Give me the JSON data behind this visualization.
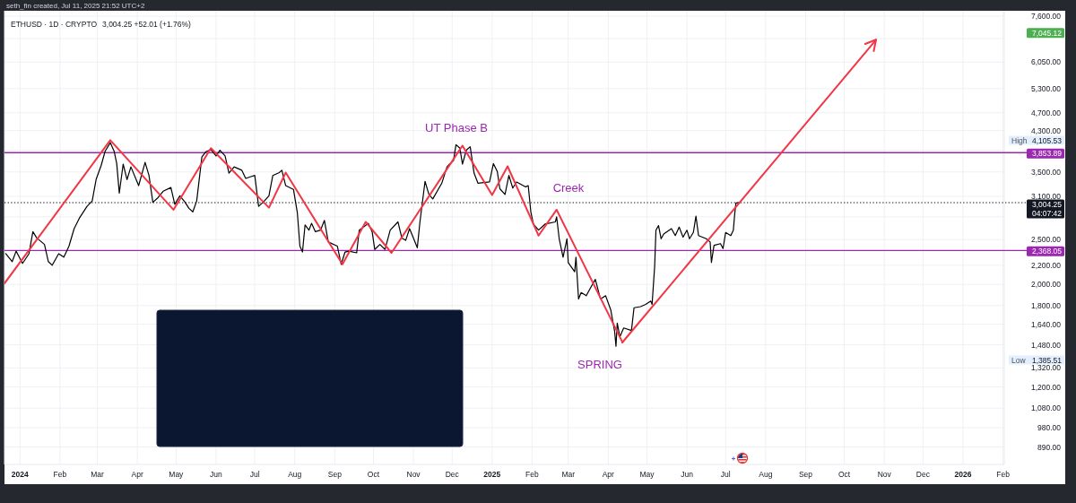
{
  "chart_data": {
    "type": "line",
    "title": "ETHUSD · 1D · CRYPTO",
    "subtitle": "3,004.25 +52.01 (+1.76%)",
    "annotations": [
      "seth_fin created, Jul 11, 2025 21:52 UTC+2",
      "UT Phase B",
      "Creek",
      "SPRING",
      "High 4,105.53",
      "Low 1,385.51",
      "7,045.12"
    ],
    "series": [
      {
        "color": "#000000",
        "x": [
          "2023-12-21",
          "2023-12-26",
          "2023-12-29",
          "2024-01-03",
          "2024-01-08",
          "2024-01-11",
          "2024-01-14",
          "2024-01-20",
          "2024-01-23",
          "2024-01-26",
          "2024-01-31",
          "2024-02-04",
          "2024-02-08",
          "2024-02-12",
          "2024-02-16",
          "2024-02-22",
          "2024-02-26",
          "2024-02-29",
          "2024-03-04",
          "2024-03-07",
          "2024-03-11",
          "2024-03-14",
          "2024-03-16",
          "2024-03-18",
          "2024-03-21",
          "2024-03-24",
          "2024-03-27",
          "2024-04-02",
          "2024-04-07",
          "2024-04-10",
          "2024-04-13",
          "2024-04-17",
          "2024-04-21",
          "2024-04-27",
          "2024-04-30",
          "2024-05-04",
          "2024-05-08",
          "2024-05-11",
          "2024-05-14",
          "2024-05-17",
          "2024-05-21",
          "2024-05-24",
          "2024-05-28",
          "2024-06-01",
          "2024-06-04",
          "2024-06-08",
          "2024-06-11",
          "2024-06-15",
          "2024-06-21",
          "2024-06-24",
          "2024-06-28",
          "2024-07-01",
          "2024-07-04",
          "2024-07-08",
          "2024-07-12",
          "2024-07-15",
          "2024-07-20",
          "2024-07-22",
          "2024-07-25",
          "2024-07-31",
          "2024-08-03",
          "2024-08-05",
          "2024-08-07",
          "2024-08-09",
          "2024-08-12",
          "2024-08-14",
          "2024-08-17",
          "2024-08-21",
          "2024-08-24",
          "2024-08-27",
          "2024-09-03",
          "2024-09-06",
          "2024-09-09",
          "2024-09-12",
          "2024-09-18",
          "2024-09-20",
          "2024-09-24",
          "2024-09-27",
          "2024-09-30",
          "2024-10-02",
          "2024-10-06",
          "2024-10-10",
          "2024-10-14",
          "2024-10-20",
          "2024-10-23",
          "2024-10-26",
          "2024-10-29",
          "2024-11-01",
          "2024-11-04",
          "2024-11-06",
          "2024-11-10",
          "2024-11-13",
          "2024-11-16",
          "2024-11-23",
          "2024-11-27",
          "2024-11-29",
          "2024-12-02",
          "2024-12-04",
          "2024-12-07",
          "2024-12-09",
          "2024-12-12",
          "2024-12-15",
          "2024-12-18",
          "2024-12-21",
          "2024-12-30",
          "2025-01-02",
          "2025-01-05",
          "2025-01-07",
          "2025-01-11",
          "2025-01-14",
          "2025-01-17",
          "2025-01-20",
          "2025-01-27",
          "2025-01-29",
          "2025-01-31",
          "2025-02-02",
          "2025-02-06",
          "2025-02-11",
          "2025-02-19",
          "2025-02-20",
          "2025-02-22",
          "2025-02-25",
          "2025-02-28",
          "2025-03-01",
          "2025-03-06",
          "2025-03-07",
          "2025-03-09",
          "2025-03-11",
          "2025-03-15",
          "2025-03-18",
          "2025-03-22",
          "2025-03-26",
          "2025-03-30",
          "2025-04-03",
          "2025-04-06",
          "2025-04-07",
          "2025-04-08",
          "2025-04-10",
          "2025-04-13",
          "2025-04-19",
          "2025-04-21",
          "2025-04-26",
          "2025-04-30",
          "2025-05-04",
          "2025-05-05",
          "2025-05-07",
          "2025-05-08",
          "2025-05-10",
          "2025-05-12",
          "2025-05-14",
          "2025-05-20",
          "2025-05-23",
          "2025-05-26",
          "2025-05-29",
          "2025-06-01",
          "2025-06-03",
          "2025-06-06",
          "2025-06-08",
          "2025-06-10",
          "2025-06-16",
          "2025-06-19",
          "2025-06-20",
          "2025-06-22",
          "2025-06-27",
          "2025-06-29",
          "2025-07-01",
          "2025-07-05",
          "2025-07-07",
          "2025-07-08",
          "2025-07-09",
          "2025-07-11"
        ],
        "values": [
          2330,
          2240,
          2360,
          2220,
          2330,
          2600,
          2520,
          2440,
          2240,
          2200,
          2330,
          2290,
          2420,
          2640,
          2780,
          2950,
          3030,
          3370,
          3620,
          3880,
          4050,
          3880,
          3650,
          3150,
          3640,
          3370,
          3590,
          3270,
          3670,
          3440,
          3010,
          3080,
          3180,
          3240,
          2980,
          3110,
          3010,
          2920,
          2870,
          3030,
          3770,
          3870,
          3910,
          3790,
          3900,
          3790,
          3480,
          3590,
          3530,
          3390,
          3420,
          3440,
          2950,
          3020,
          3110,
          3440,
          3490,
          3530,
          3270,
          3210,
          2860,
          2420,
          2350,
          2690,
          2620,
          2710,
          2600,
          2620,
          2750,
          2470,
          2420,
          2210,
          2350,
          2360,
          2340,
          2620,
          2670,
          2710,
          2600,
          2380,
          2440,
          2380,
          2620,
          2730,
          2520,
          2490,
          2640,
          2520,
          2400,
          2720,
          3340,
          3130,
          3060,
          3310,
          3590,
          3640,
          3700,
          4010,
          3940,
          3640,
          3900,
          3970,
          3480,
          3310,
          3330,
          3650,
          3510,
          3220,
          3130,
          3440,
          3230,
          3330,
          3250,
          3270,
          2870,
          2700,
          2620,
          2700,
          2730,
          2800,
          2510,
          2290,
          2510,
          2230,
          2130,
          2290,
          1860,
          1920,
          1890,
          1960,
          2050,
          1860,
          1890,
          1760,
          1580,
          1470,
          1650,
          1540,
          1610,
          1590,
          1780,
          1790,
          1810,
          1840,
          1810,
          2190,
          2620,
          2680,
          2510,
          2570,
          2640,
          2550,
          2660,
          2530,
          2620,
          2510,
          2590,
          2810,
          2550,
          2510,
          2470,
          2230,
          2430,
          2450,
          2390,
          2590,
          2550,
          2620,
          2830,
          3000,
          3004.25
        ]
      },
      {
        "color": "#f23645",
        "x": [
          "2023-12-20",
          "2024-03-11",
          "2024-04-29",
          "2024-05-28",
          "2024-07-12",
          "2024-07-25",
          "2024-09-07",
          "2024-09-25",
          "2024-10-15",
          "2024-12-09",
          "2025-01-01",
          "2025-01-13",
          "2025-02-06",
          "2025-02-20",
          "2025-04-12"
        ],
        "values": [
          2010,
          4100,
          2900,
          3940,
          2930,
          3490,
          2210,
          2730,
          2340,
          3990,
          3120,
          3600,
          2550,
          2900,
          1500
        ]
      }
    ],
    "xlim": [
      "2023-12-20",
      "2026-02-02"
    ],
    "xticks": [
      {
        "value": "2024-01-01",
        "label": "2024"
      },
      {
        "value": "2024-02-01",
        "label": "Feb"
      },
      {
        "value": "2024-03-01",
        "label": "Mar"
      },
      {
        "value": "2024-04-01",
        "label": "Apr"
      },
      {
        "value": "2024-05-01",
        "label": "May"
      },
      {
        "value": "2024-06-01",
        "label": "Jun"
      },
      {
        "value": "2024-07-01",
        "label": "Jul"
      },
      {
        "value": "2024-08-01",
        "label": "Aug"
      },
      {
        "value": "2024-09-01",
        "label": "Sep"
      },
      {
        "value": "2024-10-01",
        "label": "Oct"
      },
      {
        "value": "2024-11-01",
        "label": "Nov"
      },
      {
        "value": "2024-12-01",
        "label": "Dec"
      },
      {
        "value": "2025-01-01",
        "label": "2025"
      },
      {
        "value": "2025-02-01",
        "label": "Feb"
      },
      {
        "value": "2025-03-01",
        "label": "Mar"
      },
      {
        "value": "2025-04-01",
        "label": "Apr"
      },
      {
        "value": "2025-05-01",
        "label": "May"
      },
      {
        "value": "2025-06-01",
        "label": "Jun"
      },
      {
        "value": "2025-07-01",
        "label": "Jul"
      },
      {
        "value": "2025-08-01",
        "label": "Aug"
      },
      {
        "value": "2025-09-01",
        "label": "Sep"
      },
      {
        "value": "2025-10-01",
        "label": "Oct"
      },
      {
        "value": "2025-11-01",
        "label": "Nov"
      },
      {
        "value": "2025-12-01",
        "label": "Dec"
      },
      {
        "value": "2026-01-01",
        "label": "2026"
      },
      {
        "value": "2026-02-01",
        "label": "Feb"
      }
    ],
    "ylim": [
      816,
      7810
    ],
    "yticks": [
      {
        "value": 7600,
        "label": "7,600.00"
      },
      {
        "value": 6800,
        "label": null
      },
      {
        "value": 6050,
        "label": "6,050.00"
      },
      {
        "value": 5300,
        "label": "5,300.00"
      },
      {
        "value": 4700,
        "label": "4,700.00"
      },
      {
        "value": 4300,
        "label": "4,300.00"
      },
      {
        "value": 3900,
        "label": null
      },
      {
        "value": 3500,
        "label": "3,500.00"
      },
      {
        "value": 3100,
        "label": "3,100.00"
      },
      {
        "value": 2800,
        "label": null
      },
      {
        "value": 2500,
        "label": "2,500.00"
      },
      {
        "value": 2200,
        "label": "2,200.00"
      },
      {
        "value": 2000,
        "label": "2,000.00"
      },
      {
        "value": 1800,
        "label": "1,800.00"
      },
      {
        "value": 1640,
        "label": "1,640.00"
      },
      {
        "value": 1480,
        "label": "1,480.00"
      },
      {
        "value": 1320,
        "label": "1,320.00"
      },
      {
        "value": 1200,
        "label": "1,200.00"
      },
      {
        "value": 1080,
        "label": "1,080.00"
      },
      {
        "value": 980,
        "label": "980.00"
      },
      {
        "value": 890,
        "label": "890.00"
      }
    ],
    "log": true,
    "grid": true,
    "ref_lines": [
      {
        "axis": "y",
        "value": 3853.89,
        "label": "3,853.89",
        "color": "#9c27b0"
      },
      {
        "axis": "y",
        "value": 2368.05,
        "label": "2,368.05",
        "color": "#9c27b0"
      },
      {
        "axis": "y",
        "value": 3004.25,
        "label": "3,004.25\n04:07:42",
        "color": "#131722",
        "line_style": "dotted"
      }
    ]
  }
}
